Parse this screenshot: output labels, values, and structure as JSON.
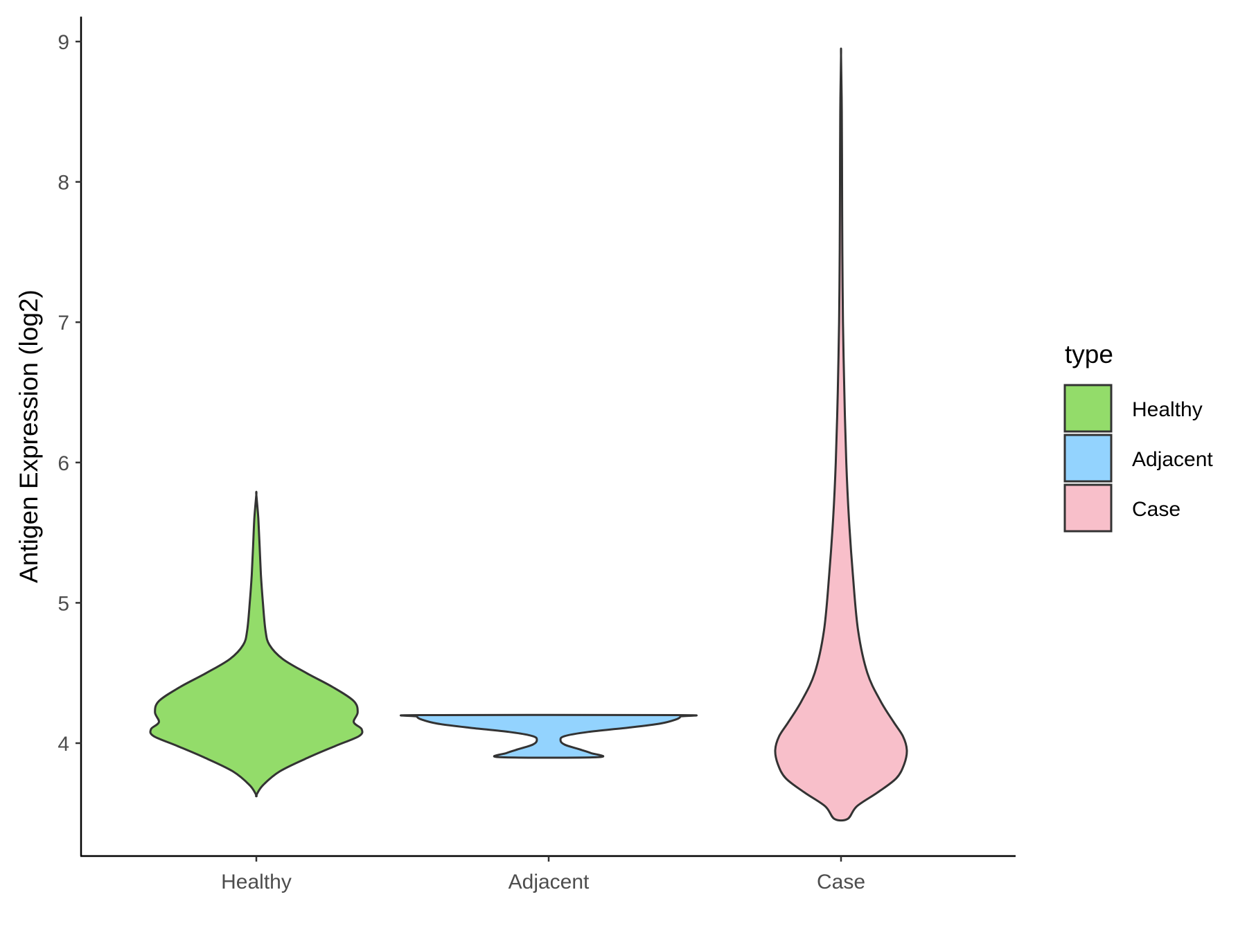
{
  "chart_data": {
    "type": "violin",
    "title": "",
    "xlabel": "",
    "ylabel": "Antigen Expression (log2)",
    "ylim": [
      3.2,
      9.2
    ],
    "yticks": [
      4,
      5,
      6,
      7,
      8,
      9
    ],
    "categories": [
      "Healthy",
      "Adjacent",
      "Case"
    ],
    "legend": {
      "title": "type",
      "position": "right",
      "entries": [
        "Healthy",
        "Adjacent",
        "Case"
      ]
    },
    "series": [
      {
        "name": "Healthy",
        "color": "#93dc6a",
        "min": 3.63,
        "max": 5.77,
        "profile": [
          [
            3.63,
            0.0
          ],
          [
            3.7,
            0.05
          ],
          [
            3.8,
            0.18
          ],
          [
            3.9,
            0.4
          ],
          [
            3.98,
            0.6
          ],
          [
            4.05,
            0.78
          ],
          [
            4.1,
            0.8
          ],
          [
            4.15,
            0.74
          ],
          [
            4.22,
            0.77
          ],
          [
            4.3,
            0.74
          ],
          [
            4.4,
            0.58
          ],
          [
            4.5,
            0.38
          ],
          [
            4.6,
            0.2
          ],
          [
            4.7,
            0.1
          ],
          [
            4.8,
            0.07
          ],
          [
            5.0,
            0.05
          ],
          [
            5.2,
            0.035
          ],
          [
            5.4,
            0.025
          ],
          [
            5.6,
            0.015
          ],
          [
            5.77,
            0.0
          ]
        ]
      },
      {
        "name": "Adjacent",
        "color": "#93d3fe",
        "min": 3.9,
        "max": 4.2,
        "profile": [
          [
            3.9,
            0.37
          ],
          [
            3.93,
            0.32
          ],
          [
            3.96,
            0.22
          ],
          [
            3.99,
            0.12
          ],
          [
            4.02,
            0.09
          ],
          [
            4.05,
            0.12
          ],
          [
            4.08,
            0.3
          ],
          [
            4.11,
            0.6
          ],
          [
            4.14,
            0.85
          ],
          [
            4.17,
            0.97
          ],
          [
            4.19,
            1.0
          ],
          [
            4.2,
            0.97
          ]
        ]
      },
      {
        "name": "Case",
        "color": "#f8bfca",
        "min": 3.46,
        "max": 8.9,
        "profile": [
          [
            3.46,
            0.05
          ],
          [
            3.55,
            0.12
          ],
          [
            3.65,
            0.28
          ],
          [
            3.75,
            0.42
          ],
          [
            3.85,
            0.48
          ],
          [
            3.95,
            0.5
          ],
          [
            4.05,
            0.47
          ],
          [
            4.15,
            0.4
          ],
          [
            4.3,
            0.3
          ],
          [
            4.5,
            0.2
          ],
          [
            4.8,
            0.13
          ],
          [
            5.2,
            0.09
          ],
          [
            5.6,
            0.06
          ],
          [
            6.0,
            0.04
          ],
          [
            6.5,
            0.025
          ],
          [
            7.0,
            0.015
          ],
          [
            7.5,
            0.01
          ],
          [
            8.0,
            0.008
          ],
          [
            8.5,
            0.006
          ],
          [
            8.9,
            0.0
          ]
        ]
      }
    ]
  }
}
